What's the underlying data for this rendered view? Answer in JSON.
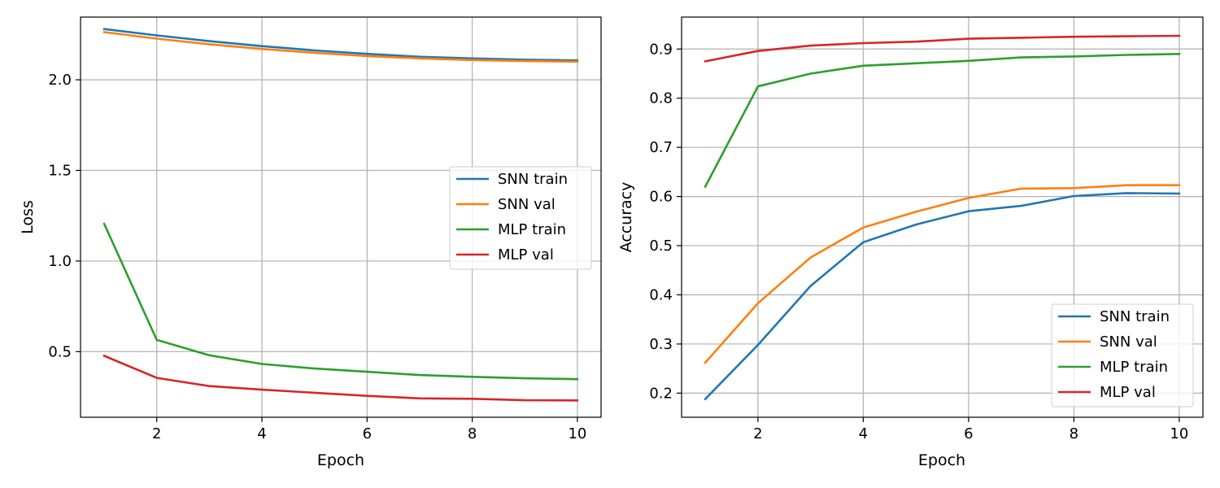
{
  "chart_data": [
    {
      "type": "line",
      "xlabel": "Epoch",
      "ylabel": "Loss",
      "xlim": [
        0.55,
        10.45
      ],
      "ylim": [
        0.138,
        2.346
      ],
      "xticks": [
        2,
        4,
        6,
        8,
        10
      ],
      "yticks": [
        0.5,
        1.0,
        1.5,
        2.0
      ],
      "ytick_labels": [
        "0.5",
        "1.0",
        "1.5",
        "2.0"
      ],
      "grid": true,
      "legend_position": "center-right",
      "x": [
        1,
        2,
        3,
        4,
        5,
        6,
        7,
        8,
        9,
        10
      ],
      "series": [
        {
          "name": "SNN train",
          "color": "#1f77b4",
          "values": [
            2.28,
            2.245,
            2.213,
            2.186,
            2.162,
            2.143,
            2.127,
            2.118,
            2.111,
            2.107
          ]
        },
        {
          "name": "SNN val",
          "color": "#ff7f0e",
          "values": [
            2.263,
            2.227,
            2.196,
            2.17,
            2.149,
            2.131,
            2.118,
            2.109,
            2.103,
            2.1
          ]
        },
        {
          "name": "MLP train",
          "color": "#2ca02c",
          "values": [
            1.205,
            0.565,
            0.48,
            0.432,
            0.407,
            0.389,
            0.371,
            0.361,
            0.353,
            0.348
          ]
        },
        {
          "name": "MLP val",
          "color": "#d62728",
          "values": [
            0.477,
            0.355,
            0.31,
            0.29,
            0.273,
            0.256,
            0.242,
            0.24,
            0.232,
            0.231
          ]
        }
      ]
    },
    {
      "type": "line",
      "xlabel": "Epoch",
      "ylabel": "Accuracy",
      "xlim": [
        0.55,
        10.45
      ],
      "ylim": [
        0.151,
        0.965
      ],
      "xticks": [
        2,
        4,
        6,
        8,
        10
      ],
      "yticks": [
        0.2,
        0.3,
        0.4,
        0.5,
        0.6,
        0.7,
        0.8,
        0.9
      ],
      "ytick_labels": [
        "0.2",
        "0.3",
        "0.4",
        "0.5",
        "0.6",
        "0.7",
        "0.8",
        "0.9"
      ],
      "grid": true,
      "legend_position": "bottom-right",
      "x": [
        1,
        2,
        3,
        4,
        5,
        6,
        7,
        8,
        9,
        10
      ],
      "series": [
        {
          "name": "SNN train",
          "color": "#1f77b4",
          "values": [
            0.188,
            0.298,
            0.418,
            0.507,
            0.543,
            0.57,
            0.581,
            0.601,
            0.607,
            0.606
          ]
        },
        {
          "name": "SNN val",
          "color": "#ff7f0e",
          "values": [
            0.262,
            0.383,
            0.476,
            0.537,
            0.569,
            0.597,
            0.616,
            0.617,
            0.623,
            0.623
          ]
        },
        {
          "name": "MLP train",
          "color": "#2ca02c",
          "values": [
            0.62,
            0.824,
            0.85,
            0.866,
            0.871,
            0.876,
            0.883,
            0.885,
            0.888,
            0.89
          ]
        },
        {
          "name": "MLP val",
          "color": "#d62728",
          "values": [
            0.875,
            0.896,
            0.907,
            0.912,
            0.915,
            0.921,
            0.923,
            0.925,
            0.926,
            0.927
          ]
        }
      ]
    }
  ]
}
